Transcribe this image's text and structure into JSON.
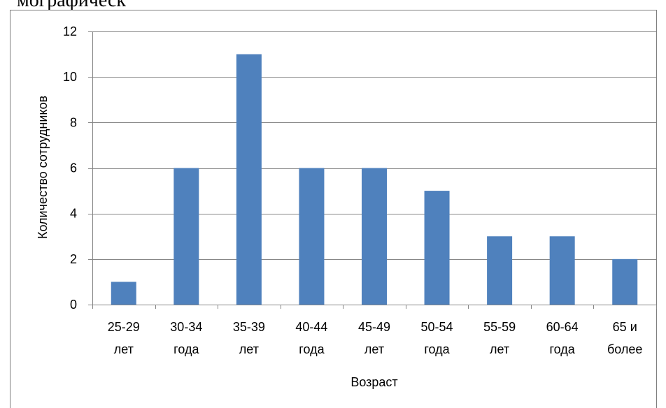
{
  "header_text": "мографическ",
  "chart_data": {
    "type": "bar",
    "title": "",
    "xlabel": "Возраст",
    "ylabel": "Количество сотрудников",
    "categories": [
      [
        "25-29",
        "лет"
      ],
      [
        "30-34",
        "года"
      ],
      [
        "35-39",
        "лет"
      ],
      [
        "40-44",
        "года"
      ],
      [
        "45-49",
        "лет"
      ],
      [
        "50-54",
        "года"
      ],
      [
        "55-59",
        "лет"
      ],
      [
        "60-64",
        "года"
      ],
      [
        "65 и",
        "более"
      ]
    ],
    "values": [
      1,
      6,
      11,
      6,
      6,
      5,
      3,
      3,
      2
    ],
    "ylim": [
      0,
      12
    ],
    "yticks": [
      0,
      2,
      4,
      6,
      8,
      10,
      12
    ],
    "grid": true,
    "legend": "none",
    "colors": {
      "bar": "#4F81BD",
      "grid": "#868686",
      "axis": "#868686",
      "border": "#7F7F7F"
    }
  }
}
